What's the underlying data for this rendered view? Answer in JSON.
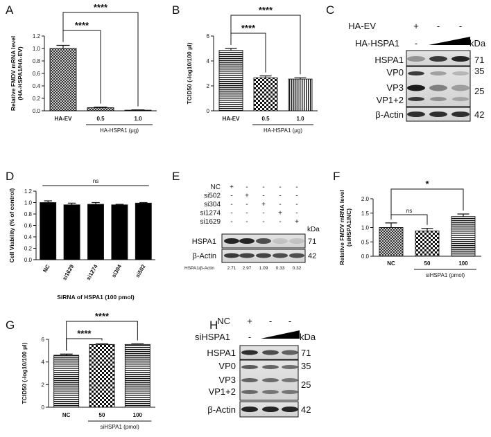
{
  "figure": {
    "panel_labels": [
      "A",
      "B",
      "C",
      "D",
      "E",
      "F",
      "G",
      "H"
    ]
  },
  "colors": {
    "bar_fill": "#000000",
    "background": "#ffffff"
  },
  "chart_data": [
    {
      "panel": "A",
      "type": "bar",
      "categories": [
        "HA-EV",
        "0.5",
        "1.0"
      ],
      "values": [
        1.0,
        0.05,
        0.01
      ],
      "errors": [
        0.05,
        0.01,
        0.005
      ],
      "patterns": [
        "crosshatch",
        "crosshatch",
        "crosshatch"
      ],
      "ylabel": [
        "Relative FMDV mRNA level",
        "(HA-HSPA1/HA-EV)"
      ],
      "xgroup_label": "HA-HSPA1 (μg)",
      "ylim": [
        0,
        1.2
      ],
      "yticks": [
        0.0,
        0.2,
        0.4,
        0.6,
        0.8,
        1.0,
        1.2
      ],
      "tick_decimals": 1,
      "significance": [
        {
          "from": 0,
          "to": 1,
          "label": "****"
        },
        {
          "from": 0,
          "to": 2,
          "label": "****"
        }
      ]
    },
    {
      "panel": "B",
      "type": "bar",
      "categories": [
        "HA-EV",
        "0.5",
        "1.0"
      ],
      "values": [
        4.85,
        2.65,
        2.55
      ],
      "errors": [
        0.15,
        0.15,
        0.1
      ],
      "patterns": [
        "hlines",
        "checker",
        "stripes"
      ],
      "ylabel": [
        "TCID50 (-log10/100 μl)"
      ],
      "xgroup_label": "HA-HSPA1 (μg)",
      "ylim": [
        0,
        6
      ],
      "yticks": [
        0,
        2,
        4,
        6
      ],
      "tick_decimals": 0,
      "significance": [
        {
          "from": 0,
          "to": 1,
          "label": "****"
        },
        {
          "from": 0,
          "to": 2,
          "label": "****"
        }
      ]
    },
    {
      "panel": "D",
      "type": "bar",
      "categories": [
        "NC",
        "si1629",
        "si1274",
        "si304",
        "si502"
      ],
      "values": [
        1.0,
        0.96,
        0.97,
        0.96,
        0.99
      ],
      "errors": [
        0.03,
        0.03,
        0.03,
        0.01,
        0.01
      ],
      "patterns": [
        "solid",
        "solid",
        "solid",
        "solid",
        "solid"
      ],
      "ylabel": [
        "Cell Viability (% of control)"
      ],
      "xlabel": "SiRNA of HSPA1 (100 pmol)",
      "ylim": [
        0,
        1.2
      ],
      "yticks": [
        0.0,
        0.2,
        0.4,
        0.6,
        0.8,
        1.0,
        1.2
      ],
      "tick_decimals": 1,
      "significance": [
        {
          "from": 0,
          "to": 4,
          "label": "ns"
        }
      ]
    },
    {
      "panel": "F",
      "type": "bar",
      "categories": [
        "NC",
        "50",
        "100"
      ],
      "values": [
        1.0,
        0.88,
        1.38
      ],
      "errors": [
        0.16,
        0.09,
        0.09
      ],
      "patterns": [
        "crosshatch",
        "checker",
        "hlines"
      ],
      "ylabel": [
        "Relative FMDV mRNA level",
        "(siHSPA1/NC)"
      ],
      "xgroup_label": "siHSPA1 (pmol)",
      "ylim": [
        0,
        2.0
      ],
      "yticks": [
        0.0,
        0.5,
        1.0,
        1.5,
        2.0
      ],
      "tick_decimals": 1,
      "significance": [
        {
          "from": 0,
          "to": 1,
          "label": "ns"
        },
        {
          "from": 0,
          "to": 2,
          "label": "*"
        }
      ]
    },
    {
      "panel": "G",
      "type": "bar",
      "categories": [
        "NC",
        "50",
        "100"
      ],
      "values": [
        4.6,
        5.55,
        5.55
      ],
      "errors": [
        0.1,
        0.05,
        0.05
      ],
      "patterns": [
        "hlines",
        "checker",
        "hlines"
      ],
      "ylabel": [
        "TCID50 (-log10/100 μl)"
      ],
      "xgroup_label": "siHSPA1 (pmol)",
      "ylim": [
        0,
        6
      ],
      "yticks": [
        0,
        2,
        4,
        6
      ],
      "tick_decimals": 0,
      "significance": [
        {
          "from": 0,
          "to": 1,
          "label": "****"
        },
        {
          "from": 0,
          "to": 2,
          "label": "****"
        }
      ]
    }
  ],
  "blots": {
    "C": {
      "conditions": [
        {
          "label": "HA-EV",
          "marks": [
            "+",
            "-",
            "-"
          ]
        },
        {
          "label": "HA-HSPA1",
          "marks": [
            "-",
            "ramp",
            "ramp"
          ]
        }
      ],
      "kda_label": "kDa",
      "bands": [
        {
          "label": "HSPA1",
          "kda": "71"
        },
        {
          "label": "VP0",
          "kda": "35"
        },
        {
          "label": "VP3",
          "kda": "25"
        },
        {
          "label": "VP1+2",
          "kda": ""
        },
        {
          "label": "β-Actin",
          "kda": "42"
        }
      ]
    },
    "E": {
      "conditions": [
        {
          "label": "NC",
          "marks": [
            "+",
            "-",
            "-",
            "-",
            "-"
          ]
        },
        {
          "label": "si502",
          "marks": [
            "-",
            "+",
            "-",
            "-",
            "-"
          ]
        },
        {
          "label": "si304",
          "marks": [
            "-",
            "-",
            "+",
            "-",
            "-"
          ]
        },
        {
          "label": "si1274",
          "marks": [
            "-",
            "-",
            "-",
            "+",
            "-"
          ]
        },
        {
          "label": "si1629",
          "marks": [
            "-",
            "-",
            "-",
            "-",
            "+"
          ]
        }
      ],
      "kda_label": "kDa",
      "bands": [
        {
          "label": "HSPA1",
          "kda": "71"
        },
        {
          "label": "β-Actin",
          "kda": "42"
        }
      ],
      "ratio_label": "HSPA1/β-Actin",
      "ratios": [
        "2.71",
        "2.97",
        "1.09",
        "0.33",
        "0.32"
      ]
    },
    "H": {
      "conditions": [
        {
          "label": "NC",
          "marks": [
            "+",
            "-",
            "-"
          ]
        },
        {
          "label": "siHSPA1",
          "marks": [
            "-",
            "ramp",
            "ramp"
          ]
        }
      ],
      "kda_label": "kDa",
      "bands": [
        {
          "label": "HSPA1",
          "kda": "71"
        },
        {
          "label": "VP0",
          "kda": "35"
        },
        {
          "label": "VP3",
          "kda": "25"
        },
        {
          "label": "VP1+2",
          "kda": ""
        },
        {
          "label": "β-Actin",
          "kda": "42"
        }
      ]
    }
  }
}
